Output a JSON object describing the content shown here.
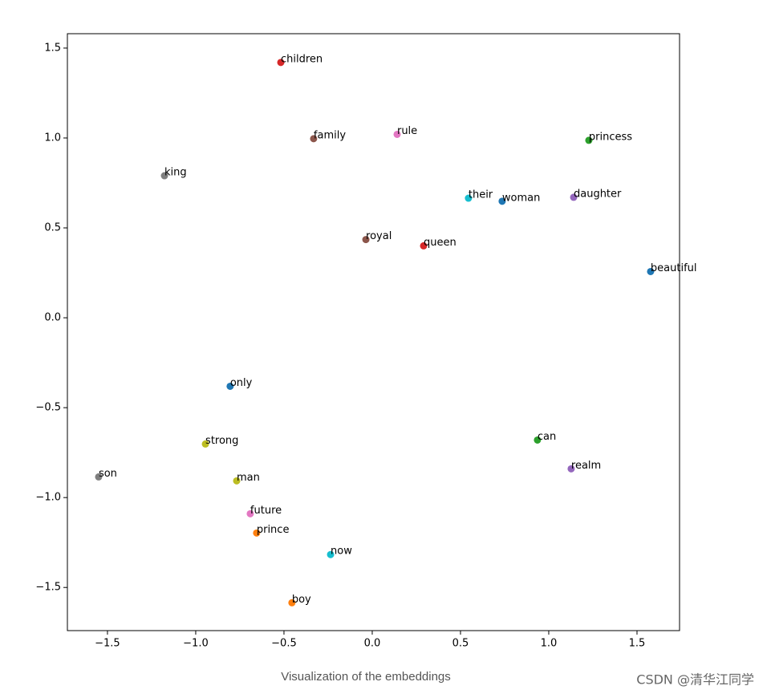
{
  "chart_data": {
    "type": "scatter",
    "caption": "Visualization of the embeddings",
    "watermark": "CSDN @清华江同学",
    "xlim": [
      -1.727,
      1.741
    ],
    "ylim": [
      -1.74,
      1.58
    ],
    "xticks": [
      {
        "value": -1.5,
        "label": "−1.5"
      },
      {
        "value": -1.0,
        "label": "−1.0"
      },
      {
        "value": -0.5,
        "label": "−0.5"
      },
      {
        "value": 0,
        "label": "0.0"
      },
      0.5,
      {
        "value": 1.0,
        "label": "1.0"
      },
      1.5
    ],
    "yticks": [
      {
        "value": -1.5,
        "label": "−1.5"
      },
      {
        "value": -1.0,
        "label": "−1.0"
      },
      {
        "value": -0.5,
        "label": "−0.5"
      },
      {
        "value": 0,
        "label": "0.0"
      },
      0.5,
      {
        "value": 1.0,
        "label": "1.0"
      },
      1.5
    ],
    "grid": false,
    "series": [
      {
        "name": "children",
        "color": "#d62728",
        "x": [
          -0.518
        ],
        "values": [
          1.42
        ]
      },
      {
        "name": "family",
        "color": "#8c564b",
        "x": [
          -0.332
        ],
        "values": [
          0.996
        ]
      },
      {
        "name": "rule",
        "color": "#e377c2",
        "x": [
          0.141
        ],
        "values": [
          1.02
        ]
      },
      {
        "name": "princess",
        "color": "#2ca02c",
        "x": [
          1.227
        ],
        "values": [
          0.987
        ]
      },
      {
        "name": "king",
        "color": "#7f7f7f",
        "x": [
          -1.177
        ],
        "values": [
          0.79
        ]
      },
      {
        "name": "their",
        "color": "#17becf",
        "x": [
          0.545
        ],
        "values": [
          0.665
        ]
      },
      {
        "name": "woman",
        "color": "#1f77b4",
        "x": [
          0.736
        ],
        "values": [
          0.648
        ]
      },
      {
        "name": "daughter",
        "color": "#9467bd",
        "x": [
          1.141
        ],
        "values": [
          0.67
        ]
      },
      {
        "name": "royal",
        "color": "#8c564b",
        "x": [
          -0.036
        ],
        "values": [
          0.435
        ]
      },
      {
        "name": "queen",
        "color": "#d62728",
        "x": [
          0.291
        ],
        "values": [
          0.4
        ]
      },
      {
        "name": "beautiful",
        "color": "#1f77b4",
        "x": [
          1.577
        ],
        "values": [
          0.257
        ]
      },
      {
        "name": "only",
        "color": "#1f77b4",
        "x": [
          -0.805
        ],
        "values": [
          -0.381
        ]
      },
      {
        "name": "strong",
        "color": "#bcbd22",
        "x": [
          -0.945
        ],
        "values": [
          -0.702
        ]
      },
      {
        "name": "can",
        "color": "#2ca02c",
        "x": [
          0.936
        ],
        "values": [
          -0.68
        ]
      },
      {
        "name": "son",
        "color": "#7f7f7f",
        "x": [
          -1.55
        ],
        "values": [
          -0.885
        ]
      },
      {
        "name": "realm",
        "color": "#9467bd",
        "x": [
          1.127
        ],
        "values": [
          -0.84
        ]
      },
      {
        "name": "man",
        "color": "#bcbd22",
        "x": [
          -0.768
        ],
        "values": [
          -0.907
        ]
      },
      {
        "name": "future",
        "color": "#e377c2",
        "x": [
          -0.691
        ],
        "values": [
          -1.09
        ]
      },
      {
        "name": "prince",
        "color": "#ff7f0e",
        "x": [
          -0.655
        ],
        "values": [
          -1.197
        ]
      },
      {
        "name": "now",
        "color": "#17becf",
        "x": [
          -0.236
        ],
        "values": [
          -1.317
        ]
      },
      {
        "name": "boy",
        "color": "#ff7f0e",
        "x": [
          -0.455
        ],
        "values": [
          -1.585
        ]
      }
    ]
  }
}
